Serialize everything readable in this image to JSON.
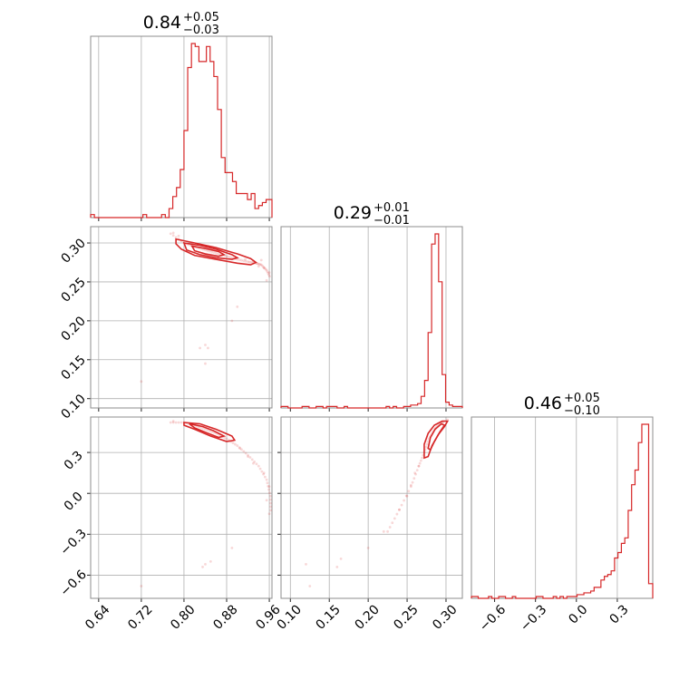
{
  "colors": {
    "accent": "#d62728",
    "grid": "#b0b0b0",
    "frame": "#8c8c8c"
  },
  "chart_data": {
    "type": "corner",
    "parameters": [
      {
        "median": "0.84",
        "plus": "+0.05",
        "minus": "−0.03",
        "range": [
          0.625,
          0.965
        ],
        "ticks": [
          0.64,
          0.72,
          0.8,
          0.88,
          0.96
        ],
        "tick_labels": [
          "0.64",
          "0.72",
          "0.80",
          "0.88",
          "0.96"
        ]
      },
      {
        "median": "0.29",
        "plus": "+0.01",
        "minus": "−0.01",
        "range": [
          0.088,
          0.321
        ],
        "ticks": [
          0.1,
          0.15,
          0.2,
          0.25,
          0.3
        ],
        "tick_labels": [
          "0.10",
          "0.15",
          "0.20",
          "0.25",
          "0.30"
        ]
      },
      {
        "median": "0.46",
        "plus": "+0.05",
        "minus": "−0.10",
        "range": [
          -0.77,
          0.56
        ],
        "ticks": [
          -0.6,
          -0.3,
          0.0,
          0.3
        ],
        "tick_labels": [
          "−0.6",
          "−0.3",
          "0.0",
          "0.3"
        ]
      }
    ],
    "hist": [
      {
        "edges": [
          0.625,
          0.632,
          0.639,
          0.646,
          0.653,
          0.66,
          0.667,
          0.674,
          0.681,
          0.688,
          0.695,
          0.702,
          0.709,
          0.716,
          0.723,
          0.73,
          0.737,
          0.744,
          0.751,
          0.758,
          0.765,
          0.772,
          0.779,
          0.786,
          0.793,
          0.8,
          0.807,
          0.814,
          0.821,
          0.828,
          0.835,
          0.842,
          0.849,
          0.856,
          0.863,
          0.87,
          0.877,
          0.884,
          0.891,
          0.898,
          0.905,
          0.912,
          0.919,
          0.926,
          0.933,
          0.94,
          0.947,
          0.954,
          0.961,
          0.965
        ],
        "counts": [
          1,
          0,
          0,
          0,
          0,
          0,
          0,
          0,
          0,
          0,
          0,
          0,
          0,
          0,
          1,
          0,
          0,
          0,
          0,
          1,
          0,
          3,
          7,
          10,
          16,
          29,
          50,
          58,
          57,
          52,
          52,
          57,
          52,
          47,
          36,
          20,
          15,
          15,
          12,
          8,
          8,
          8,
          6,
          8,
          3,
          4,
          5,
          6,
          6
        ]
      },
      {
        "edges": [
          0.088,
          0.0925,
          0.097,
          0.1015,
          0.106,
          0.1105,
          0.115,
          0.1195,
          0.124,
          0.1285,
          0.133,
          0.1375,
          0.142,
          0.1465,
          0.151,
          0.1555,
          0.16,
          0.1645,
          0.169,
          0.1735,
          0.178,
          0.1825,
          0.187,
          0.1915,
          0.196,
          0.2005,
          0.205,
          0.2095,
          0.214,
          0.2185,
          0.223,
          0.2275,
          0.232,
          0.2365,
          0.241,
          0.2455,
          0.25,
          0.2545,
          0.259,
          0.2635,
          0.268,
          0.2725,
          0.277,
          0.2815,
          0.286,
          0.2905,
          0.295,
          0.2995,
          0.304,
          0.3085,
          0.313,
          0.3175,
          0.321
        ],
        "counts": [
          1,
          1,
          0,
          0,
          0,
          0,
          1,
          1,
          0,
          0,
          1,
          1,
          0,
          1,
          1,
          1,
          0,
          0,
          1,
          0,
          0,
          0,
          0,
          0,
          0,
          0,
          0,
          0,
          0,
          0,
          1,
          0,
          1,
          0,
          0,
          1,
          1,
          2,
          2,
          3,
          8,
          19,
          52,
          113,
          120,
          87,
          23,
          4,
          2,
          1,
          1,
          1
        ]
      },
      {
        "edges": [
          -0.77,
          -0.745,
          -0.72,
          -0.695,
          -0.67,
          -0.645,
          -0.62,
          -0.595,
          -0.57,
          -0.545,
          -0.52,
          -0.495,
          -0.47,
          -0.445,
          -0.42,
          -0.395,
          -0.37,
          -0.345,
          -0.32,
          -0.295,
          -0.27,
          -0.245,
          -0.22,
          -0.195,
          -0.17,
          -0.145,
          -0.12,
          -0.095,
          -0.07,
          -0.045,
          -0.02,
          0.005,
          0.03,
          0.055,
          0.08,
          0.105,
          0.13,
          0.155,
          0.18,
          0.205,
          0.23,
          0.255,
          0.28,
          0.305,
          0.33,
          0.355,
          0.38,
          0.405,
          0.43,
          0.455,
          0.48,
          0.505,
          0.53,
          0.56
        ],
        "counts": [
          1,
          1,
          0,
          0,
          0,
          1,
          0,
          0,
          1,
          1,
          0,
          0,
          1,
          0,
          0,
          0,
          0,
          0,
          0,
          1,
          1,
          0,
          0,
          0,
          1,
          0,
          1,
          0,
          1,
          1,
          1,
          2,
          2,
          3,
          3,
          4,
          6,
          6,
          10,
          12,
          13,
          15,
          22,
          25,
          30,
          33,
          48,
          62,
          70,
          85,
          95,
          95,
          8
        ]
      }
    ],
    "pair_2_1": {
      "ridge": [
        [
          0.775,
          0.312
        ],
        [
          0.8,
          0.3
        ],
        [
          0.82,
          0.295
        ],
        [
          0.84,
          0.291
        ],
        [
          0.86,
          0.287
        ],
        [
          0.88,
          0.283
        ],
        [
          0.9,
          0.279
        ],
        [
          0.92,
          0.276
        ],
        [
          0.935,
          0.274
        ],
        [
          0.945,
          0.272
        ],
        [
          0.955,
          0.265
        ],
        [
          0.962,
          0.255
        ]
      ],
      "contours": [
        [
          [
            0.785,
            0.305
          ],
          [
            0.82,
            0.3
          ],
          [
            0.86,
            0.294
          ],
          [
            0.9,
            0.286
          ],
          [
            0.925,
            0.28
          ],
          [
            0.935,
            0.275
          ],
          [
            0.925,
            0.272
          ],
          [
            0.9,
            0.274
          ],
          [
            0.86,
            0.279
          ],
          [
            0.82,
            0.284
          ],
          [
            0.795,
            0.292
          ],
          [
            0.785,
            0.299
          ]
        ],
        [
          [
            0.8,
            0.3
          ],
          [
            0.83,
            0.297
          ],
          [
            0.86,
            0.292
          ],
          [
            0.89,
            0.285
          ],
          [
            0.9,
            0.281
          ],
          [
            0.89,
            0.279
          ],
          [
            0.86,
            0.281
          ],
          [
            0.83,
            0.285
          ],
          [
            0.805,
            0.291
          ]
        ],
        [
          [
            0.815,
            0.296
          ],
          [
            0.84,
            0.293
          ],
          [
            0.865,
            0.289
          ],
          [
            0.875,
            0.285
          ],
          [
            0.865,
            0.283
          ],
          [
            0.84,
            0.286
          ],
          [
            0.82,
            0.29
          ]
        ]
      ],
      "scatter": [
        [
          0.84,
          0.169
        ],
        [
          0.83,
          0.165
        ],
        [
          0.845,
          0.165
        ],
        [
          0.84,
          0.145
        ],
        [
          0.72,
          0.122
        ],
        [
          0.9,
          0.218
        ],
        [
          0.89,
          0.2
        ],
        [
          0.955,
          0.252
        ],
        [
          0.96,
          0.262
        ],
        [
          0.94,
          0.27
        ],
        [
          0.945,
          0.278
        ],
        [
          0.93,
          0.277
        ],
        [
          0.915,
          0.279
        ],
        [
          0.78,
          0.313
        ],
        [
          0.79,
          0.309
        ],
        [
          0.95,
          0.268
        ]
      ]
    },
    "pair_3_1": {
      "ridge": [
        [
          0.775,
          0.52
        ],
        [
          0.8,
          0.52
        ],
        [
          0.82,
          0.5
        ],
        [
          0.84,
          0.47
        ],
        [
          0.86,
          0.44
        ],
        [
          0.88,
          0.4
        ],
        [
          0.9,
          0.35
        ],
        [
          0.92,
          0.28
        ],
        [
          0.94,
          0.2
        ],
        [
          0.955,
          0.1
        ],
        [
          0.962,
          -0.02
        ],
        [
          0.963,
          -0.15
        ]
      ],
      "contours": [
        [
          [
            0.8,
            0.52
          ],
          [
            0.83,
            0.51
          ],
          [
            0.86,
            0.47
          ],
          [
            0.89,
            0.42
          ],
          [
            0.895,
            0.39
          ],
          [
            0.88,
            0.38
          ],
          [
            0.85,
            0.42
          ],
          [
            0.82,
            0.47
          ],
          [
            0.8,
            0.5
          ]
        ],
        [
          [
            0.81,
            0.51
          ],
          [
            0.835,
            0.49
          ],
          [
            0.855,
            0.46
          ],
          [
            0.875,
            0.42
          ],
          [
            0.865,
            0.41
          ],
          [
            0.845,
            0.44
          ],
          [
            0.82,
            0.48
          ]
        ]
      ],
      "scatter": [
        [
          0.84,
          -0.52
        ],
        [
          0.85,
          -0.5
        ],
        [
          0.835,
          -0.54
        ],
        [
          0.72,
          -0.68
        ],
        [
          0.89,
          -0.4
        ],
        [
          0.96,
          -0.15
        ],
        [
          0.955,
          -0.05
        ],
        [
          0.96,
          0.05
        ],
        [
          0.95,
          0.15
        ],
        [
          0.93,
          0.22
        ],
        [
          0.92,
          0.27
        ],
        [
          0.78,
          0.53
        ],
        [
          0.905,
          0.33
        ]
      ]
    },
    "pair_3_2": {
      "ridge": [
        [
          0.225,
          -0.28
        ],
        [
          0.24,
          -0.12
        ],
        [
          0.255,
          0.05
        ],
        [
          0.265,
          0.2
        ],
        [
          0.272,
          0.3
        ],
        [
          0.278,
          0.4
        ],
        [
          0.285,
          0.47
        ],
        [
          0.292,
          0.51
        ],
        [
          0.298,
          0.53
        ]
      ],
      "contours": [
        [
          [
            0.272,
            0.26
          ],
          [
            0.272,
            0.36
          ],
          [
            0.277,
            0.44
          ],
          [
            0.285,
            0.5
          ],
          [
            0.295,
            0.53
          ],
          [
            0.302,
            0.53
          ],
          [
            0.298,
            0.49
          ],
          [
            0.29,
            0.43
          ],
          [
            0.282,
            0.35
          ],
          [
            0.277,
            0.27
          ]
        ],
        [
          [
            0.277,
            0.33
          ],
          [
            0.28,
            0.41
          ],
          [
            0.286,
            0.47
          ],
          [
            0.294,
            0.51
          ],
          [
            0.298,
            0.5
          ],
          [
            0.292,
            0.45
          ],
          [
            0.285,
            0.38
          ],
          [
            0.28,
            0.32
          ]
        ]
      ],
      "scatter": [
        [
          0.12,
          -0.52
        ],
        [
          0.165,
          -0.48
        ],
        [
          0.16,
          -0.54
        ],
        [
          0.125,
          -0.68
        ],
        [
          0.2,
          -0.4
        ],
        [
          0.22,
          -0.28
        ],
        [
          0.24,
          -0.12
        ],
        [
          0.25,
          -0.02
        ],
        [
          0.255,
          0.06
        ],
        [
          0.26,
          0.15
        ],
        [
          0.265,
          0.2
        ],
        [
          0.302,
          0.54
        ]
      ]
    }
  }
}
